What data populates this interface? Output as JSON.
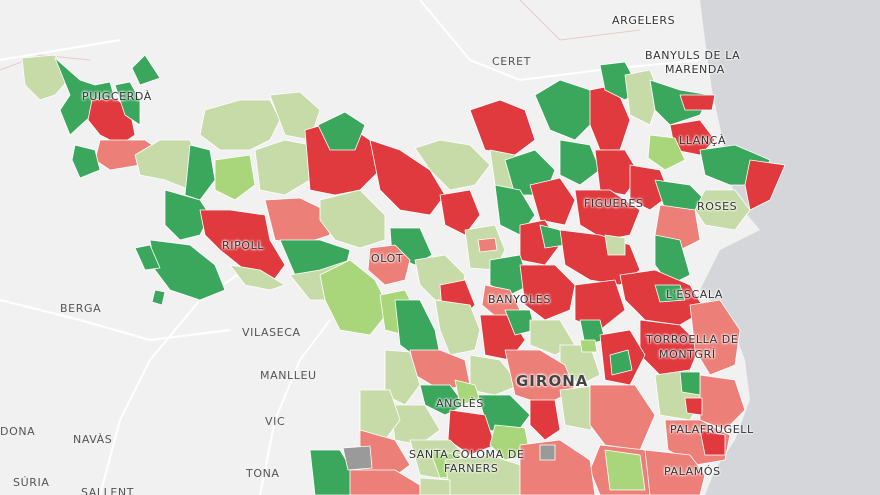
{
  "map": {
    "colors": {
      "sea": "#d4d6d9",
      "land": "#f1f1f1",
      "dark_red": "#e03a3e",
      "light_red": "#ec8079",
      "dark_green": "#3aa75d",
      "pale_green": "#c7dba8",
      "light_green": "#a9d67a",
      "gray": "#9a9a9a"
    },
    "labels": {
      "argelers": "ARGELERS",
      "banyuls_1": "BANYULS DE LA",
      "banyuls_2": "MARENDA",
      "ceret": "CERET",
      "puigcerda": "PUIGCERDÀ",
      "llanca": "LLANÇÀ",
      "figueres": "FIGUERES",
      "roses": "ROSES",
      "ripoll": "RIPOLL",
      "olot": "OLOT",
      "berga": "BERGA",
      "banyoles": "BANYOLES",
      "lescala": "L'ESCALA",
      "vilaseca": "VILASECA",
      "torroella_1": "TORROELLA DE",
      "torroella_2": "MONTGRÍ",
      "manlleu": "MANLLEU",
      "girona": "GIRONA",
      "angles": "ANGLÈS",
      "vic": "VIC",
      "donа": "DONA",
      "navas": "NAVÀS",
      "palafrugell": "PALAFRUGELL",
      "santa_coloma_1": "SANTA COLOMA DE",
      "santa_coloma_2": "FARNERS",
      "tona": "TONA",
      "palamos": "PALAMÓS",
      "suria": "SÚRIA",
      "sallent": "SALLENT"
    }
  }
}
